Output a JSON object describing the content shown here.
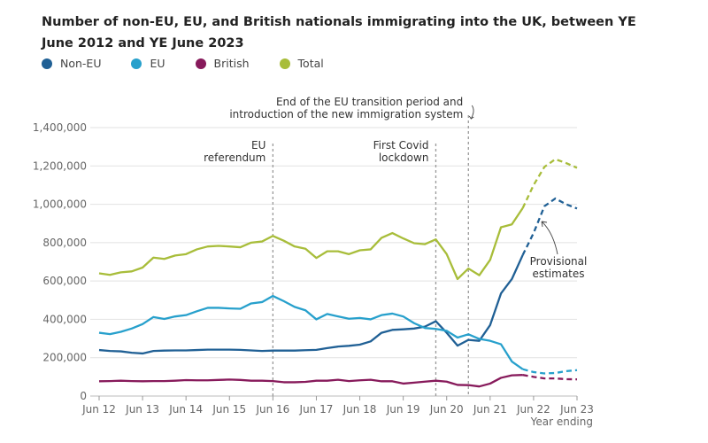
{
  "title": "Number of non-EU, EU, and British nationals immigrating into the UK, between YE June 2012 and YE June 2023",
  "chart_data": {
    "type": "line",
    "title": "Number of non-EU, EU, and British nationals immigrating into the UK, between YE June 2012 and YE June 2023",
    "xlabel": "Year ending",
    "ylabel": "",
    "ylim": [
      0,
      1400000
    ],
    "yticks": [
      "0",
      "200,000",
      "400,000",
      "600,000",
      "800,000",
      "1,000,000",
      "1,200,000",
      "1,400,000"
    ],
    "xticks": [
      "Jun 12",
      "Jun 13",
      "Jun 14",
      "Jun 15",
      "Jun 16",
      "Jun 17",
      "Jun 18",
      "Jun 19",
      "Jun 20",
      "Jun 21",
      "Jun 22",
      "Jun 23"
    ],
    "x_frequency": "quarterly, YE Jun 2012 to YE Jun 2023",
    "provisional_from": "YE Mar 2022",
    "grid": true,
    "legend": "top-left",
    "series": [
      {
        "name": "Non-EU",
        "color": "#206095",
        "values": [
          240000,
          235000,
          233000,
          226000,
          222000,
          235000,
          237000,
          238000,
          238000,
          240000,
          242000,
          242000,
          242000,
          241000,
          238000,
          235000,
          237000,
          237000,
          237000,
          239000,
          241000,
          250000,
          258000,
          262000,
          268000,
          285000,
          330000,
          345000,
          348000,
          352000,
          362000,
          390000,
          330000,
          263000,
          293000,
          288000,
          370000,
          535000,
          610000,
          735000,
          850000,
          990000,
          1030000,
          1000000,
          978000
        ]
      },
      {
        "name": "EU",
        "color": "#27a0cc",
        "values": [
          330000,
          323000,
          335000,
          352000,
          375000,
          412000,
          402000,
          415000,
          422000,
          442000,
          460000,
          460000,
          457000,
          455000,
          483000,
          490000,
          522000,
          495000,
          465000,
          447000,
          400000,
          428000,
          415000,
          403000,
          407000,
          400000,
          422000,
          430000,
          415000,
          380000,
          355000,
          350000,
          340000,
          305000,
          322000,
          298000,
          288000,
          270000,
          180000,
          140000,
          125000,
          118000,
          120000,
          130000,
          135000
        ]
      },
      {
        "name": "British",
        "color": "#871a5b",
        "values": [
          77000,
          78000,
          80000,
          78000,
          77000,
          78000,
          78000,
          80000,
          83000,
          82000,
          82000,
          84000,
          86000,
          84000,
          80000,
          80000,
          78000,
          72000,
          72000,
          74000,
          80000,
          80000,
          85000,
          78000,
          82000,
          85000,
          77000,
          77000,
          65000,
          70000,
          75000,
          80000,
          75000,
          58000,
          57000,
          50000,
          65000,
          95000,
          108000,
          110000,
          100000,
          92000,
          92000,
          88000,
          87000
        ]
      },
      {
        "name": "Total",
        "color": "#a8bd3a",
        "values": [
          640000,
          632000,
          645000,
          650000,
          670000,
          722000,
          715000,
          733000,
          740000,
          765000,
          780000,
          783000,
          780000,
          776000,
          800000,
          806000,
          835000,
          810000,
          780000,
          768000,
          720000,
          755000,
          755000,
          740000,
          760000,
          765000,
          825000,
          850000,
          822000,
          797000,
          792000,
          817000,
          740000,
          610000,
          665000,
          630000,
          710000,
          880000,
          895000,
          980000,
          1100000,
          1195000,
          1235000,
          1215000,
          1190000
        ]
      }
    ],
    "annotations": [
      {
        "label": "EU referendum",
        "at": "Jun 16"
      },
      {
        "label": "First Covid lockdown",
        "at": "Mar 20"
      },
      {
        "label": "End of the EU transition period and introduction of the new immigration system",
        "at": "Dec 20"
      },
      {
        "label": "Provisional estimates"
      }
    ]
  }
}
